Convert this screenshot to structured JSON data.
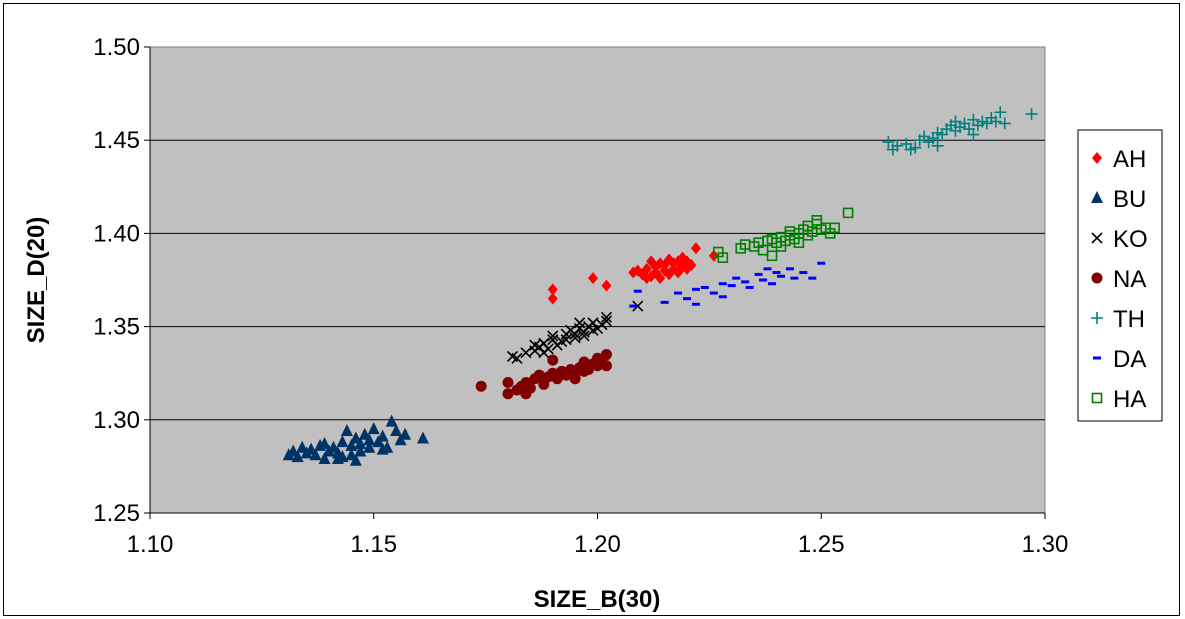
{
  "chart_data": {
    "type": "scatter",
    "xlabel": "SIZE_B(30)",
    "ylabel": "SIZE_D(20)",
    "xlim": [
      1.1,
      1.3
    ],
    "ylim": [
      1.25,
      1.5
    ],
    "xticks": [
      "1.10",
      "1.15",
      "1.20",
      "1.25",
      "1.30"
    ],
    "yticks": [
      "1.25",
      "1.30",
      "1.35",
      "1.40",
      "1.45",
      "1.50"
    ],
    "grid": "horizontal",
    "legend_position": "right",
    "plot_background": "#c0c0c0",
    "series": [
      {
        "name": "AH",
        "color": "#ff0000",
        "marker": "diamond",
        "points": [
          [
            1.19,
            1.37
          ],
          [
            1.19,
            1.365
          ],
          [
            1.199,
            1.376
          ],
          [
            1.202,
            1.372
          ],
          [
            1.208,
            1.379
          ],
          [
            1.209,
            1.38
          ],
          [
            1.21,
            1.378
          ],
          [
            1.211,
            1.381
          ],
          [
            1.212,
            1.377
          ],
          [
            1.213,
            1.382
          ],
          [
            1.213,
            1.379
          ],
          [
            1.214,
            1.384
          ],
          [
            1.214,
            1.376
          ],
          [
            1.215,
            1.38
          ],
          [
            1.215,
            1.383
          ],
          [
            1.216,
            1.378
          ],
          [
            1.216,
            1.386
          ],
          [
            1.217,
            1.381
          ],
          [
            1.217,
            1.384
          ],
          [
            1.218,
            1.379
          ],
          [
            1.218,
            1.385
          ],
          [
            1.219,
            1.382
          ],
          [
            1.219,
            1.387
          ],
          [
            1.22,
            1.381
          ],
          [
            1.22,
            1.385
          ],
          [
            1.221,
            1.383
          ],
          [
            1.222,
            1.392
          ],
          [
            1.226,
            1.388
          ],
          [
            1.212,
            1.385
          ],
          [
            1.211,
            1.376
          ]
        ]
      },
      {
        "name": "BU",
        "color": "#003366",
        "marker": "triangle",
        "points": [
          [
            1.131,
            1.281
          ],
          [
            1.132,
            1.283
          ],
          [
            1.133,
            1.28
          ],
          [
            1.134,
            1.285
          ],
          [
            1.135,
            1.282
          ],
          [
            1.136,
            1.284
          ],
          [
            1.137,
            1.281
          ],
          [
            1.138,
            1.286
          ],
          [
            1.139,
            1.279
          ],
          [
            1.14,
            1.283
          ],
          [
            1.141,
            1.285
          ],
          [
            1.142,
            1.282
          ],
          [
            1.143,
            1.288
          ],
          [
            1.143,
            1.28
          ],
          [
            1.144,
            1.294
          ],
          [
            1.145,
            1.286
          ],
          [
            1.145,
            1.281
          ],
          [
            1.146,
            1.29
          ],
          [
            1.147,
            1.287
          ],
          [
            1.147,
            1.283
          ],
          [
            1.148,
            1.292
          ],
          [
            1.149,
            1.289
          ],
          [
            1.149,
            1.285
          ],
          [
            1.15,
            1.295
          ],
          [
            1.151,
            1.288
          ],
          [
            1.152,
            1.291
          ],
          [
            1.153,
            1.285
          ],
          [
            1.154,
            1.299
          ],
          [
            1.155,
            1.294
          ],
          [
            1.156,
            1.289
          ],
          [
            1.157,
            1.292
          ],
          [
            1.161,
            1.29
          ],
          [
            1.142,
            1.279
          ],
          [
            1.146,
            1.278
          ],
          [
            1.152,
            1.284
          ],
          [
            1.139,
            1.287
          ]
        ]
      },
      {
        "name": "KO",
        "color": "#000000",
        "marker": "x",
        "points": [
          [
            1.181,
            1.334
          ],
          [
            1.182,
            1.333
          ],
          [
            1.184,
            1.336
          ],
          [
            1.186,
            1.337
          ],
          [
            1.187,
            1.339
          ],
          [
            1.188,
            1.341
          ],
          [
            1.189,
            1.338
          ],
          [
            1.19,
            1.343
          ],
          [
            1.19,
            1.345
          ],
          [
            1.191,
            1.34
          ],
          [
            1.192,
            1.342
          ],
          [
            1.193,
            1.346
          ],
          [
            1.193,
            1.343
          ],
          [
            1.194,
            1.348
          ],
          [
            1.195,
            1.344
          ],
          [
            1.195,
            1.346
          ],
          [
            1.196,
            1.349
          ],
          [
            1.197,
            1.345
          ],
          [
            1.197,
            1.347
          ],
          [
            1.198,
            1.35
          ],
          [
            1.199,
            1.348
          ],
          [
            1.199,
            1.352
          ],
          [
            1.2,
            1.349
          ],
          [
            1.201,
            1.351
          ],
          [
            1.202,
            1.353
          ],
          [
            1.202,
            1.355
          ],
          [
            1.209,
            1.361
          ],
          [
            1.188,
            1.336
          ],
          [
            1.186,
            1.34
          ],
          [
            1.196,
            1.352
          ]
        ]
      },
      {
        "name": "NA",
        "color": "#800000",
        "marker": "circle",
        "points": [
          [
            1.174,
            1.318
          ],
          [
            1.18,
            1.314
          ],
          [
            1.18,
            1.32
          ],
          [
            1.182,
            1.316
          ],
          [
            1.183,
            1.318
          ],
          [
            1.184,
            1.32
          ],
          [
            1.185,
            1.317
          ],
          [
            1.186,
            1.322
          ],
          [
            1.187,
            1.324
          ],
          [
            1.188,
            1.319
          ],
          [
            1.189,
            1.323
          ],
          [
            1.19,
            1.325
          ],
          [
            1.19,
            1.332
          ],
          [
            1.191,
            1.322
          ],
          [
            1.192,
            1.326
          ],
          [
            1.193,
            1.324
          ],
          [
            1.194,
            1.327
          ],
          [
            1.195,
            1.325
          ],
          [
            1.196,
            1.328
          ],
          [
            1.197,
            1.326
          ],
          [
            1.197,
            1.331
          ],
          [
            1.198,
            1.327
          ],
          [
            1.199,
            1.33
          ],
          [
            1.2,
            1.329
          ],
          [
            1.2,
            1.333
          ],
          [
            1.201,
            1.331
          ],
          [
            1.202,
            1.335
          ],
          [
            1.202,
            1.329
          ],
          [
            1.184,
            1.314
          ],
          [
            1.195,
            1.322
          ]
        ]
      },
      {
        "name": "TH",
        "color": "#008080",
        "marker": "plus",
        "points": [
          [
            1.265,
            1.449
          ],
          [
            1.266,
            1.445
          ],
          [
            1.267,
            1.447
          ],
          [
            1.269,
            1.448
          ],
          [
            1.27,
            1.445
          ],
          [
            1.271,
            1.446
          ],
          [
            1.272,
            1.45
          ],
          [
            1.273,
            1.452
          ],
          [
            1.274,
            1.449
          ],
          [
            1.275,
            1.451
          ],
          [
            1.276,
            1.454
          ],
          [
            1.276,
            1.447
          ],
          [
            1.277,
            1.453
          ],
          [
            1.278,
            1.456
          ],
          [
            1.279,
            1.458
          ],
          [
            1.28,
            1.455
          ],
          [
            1.28,
            1.46
          ],
          [
            1.281,
            1.457
          ],
          [
            1.282,
            1.459
          ],
          [
            1.283,
            1.456
          ],
          [
            1.284,
            1.461
          ],
          [
            1.285,
            1.458
          ],
          [
            1.286,
            1.46
          ],
          [
            1.287,
            1.459
          ],
          [
            1.288,
            1.462
          ],
          [
            1.289,
            1.46
          ],
          [
            1.29,
            1.465
          ],
          [
            1.291,
            1.459
          ],
          [
            1.297,
            1.464
          ],
          [
            1.284,
            1.453
          ]
        ]
      },
      {
        "name": "DA",
        "color": "#0000ff",
        "marker": "dash",
        "points": [
          [
            1.208,
            1.361
          ],
          [
            1.209,
            1.369
          ],
          [
            1.215,
            1.363
          ],
          [
            1.218,
            1.368
          ],
          [
            1.22,
            1.365
          ],
          [
            1.222,
            1.37
          ],
          [
            1.224,
            1.371
          ],
          [
            1.226,
            1.368
          ],
          [
            1.228,
            1.373
          ],
          [
            1.228,
            1.366
          ],
          [
            1.23,
            1.372
          ],
          [
            1.231,
            1.376
          ],
          [
            1.233,
            1.374
          ],
          [
            1.234,
            1.371
          ],
          [
            1.236,
            1.378
          ],
          [
            1.237,
            1.375
          ],
          [
            1.239,
            1.373
          ],
          [
            1.24,
            1.379
          ],
          [
            1.241,
            1.377
          ],
          [
            1.243,
            1.381
          ],
          [
            1.244,
            1.376
          ],
          [
            1.246,
            1.379
          ],
          [
            1.25,
            1.384
          ],
          [
            1.248,
            1.376
          ],
          [
            1.222,
            1.362
          ],
          [
            1.238,
            1.381
          ]
        ]
      },
      {
        "name": "HA",
        "color": "#008000",
        "marker": "square-open",
        "points": [
          [
            1.227,
            1.39
          ],
          [
            1.228,
            1.387
          ],
          [
            1.232,
            1.392
          ],
          [
            1.233,
            1.394
          ],
          [
            1.235,
            1.393
          ],
          [
            1.236,
            1.395
          ],
          [
            1.237,
            1.391
          ],
          [
            1.238,
            1.396
          ],
          [
            1.239,
            1.397
          ],
          [
            1.239,
            1.388
          ],
          [
            1.24,
            1.395
          ],
          [
            1.241,
            1.398
          ],
          [
            1.242,
            1.396
          ],
          [
            1.243,
            1.399
          ],
          [
            1.243,
            1.401
          ],
          [
            1.244,
            1.397
          ],
          [
            1.245,
            1.4
          ],
          [
            1.246,
            1.402
          ],
          [
            1.247,
            1.399
          ],
          [
            1.247,
            1.404
          ],
          [
            1.248,
            1.401
          ],
          [
            1.249,
            1.405
          ],
          [
            1.25,
            1.402
          ],
          [
            1.251,
            1.403
          ],
          [
            1.252,
            1.4
          ],
          [
            1.253,
            1.403
          ],
          [
            1.256,
            1.411
          ],
          [
            1.241,
            1.393
          ],
          [
            1.245,
            1.395
          ],
          [
            1.249,
            1.407
          ]
        ]
      }
    ]
  }
}
